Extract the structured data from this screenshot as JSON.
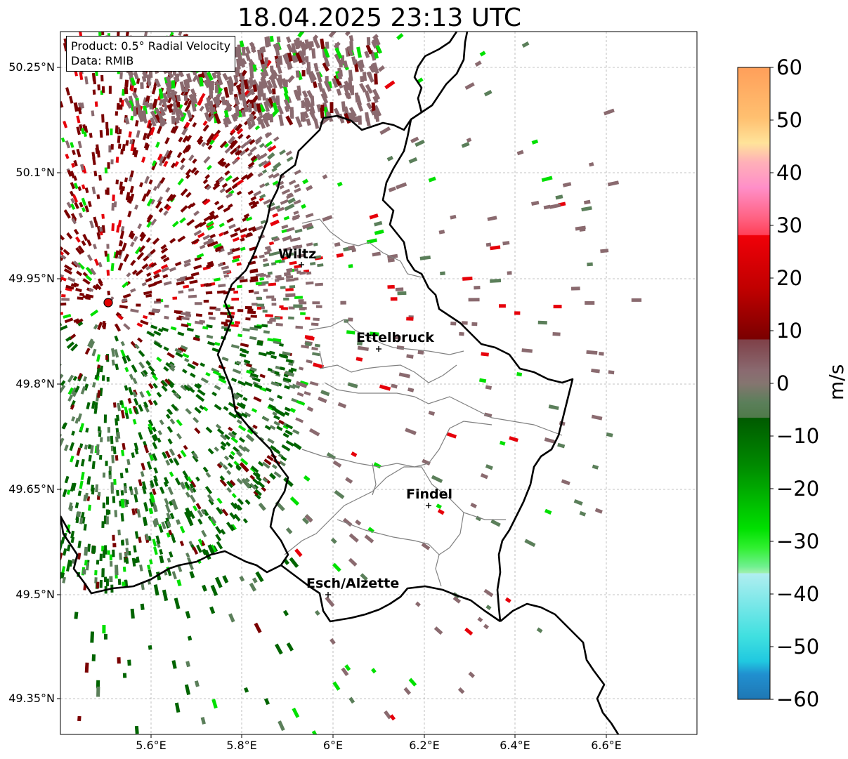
{
  "title": "18.04.2025 23:13 UTC",
  "info": {
    "product": "Product: 0.5° Radial Velocity",
    "source": "Data: RMIB"
  },
  "axes": {
    "lat_labels": [
      "50.25°N",
      "50.1°N",
      "49.95°N",
      "49.8°N",
      "49.65°N",
      "49.5°N",
      "49.35°N"
    ],
    "lon_labels": [
      "5.6°E",
      "5.8°E",
      "6°E",
      "6.2°E",
      "6.4°E",
      "6.6°E"
    ],
    "grid": "dashed"
  },
  "cities": [
    {
      "name": "Wiltz"
    },
    {
      "name": "Ettelbruck"
    },
    {
      "name": "Findel"
    },
    {
      "name": "Esch/Alzette"
    }
  ],
  "colorbar": {
    "unit": "m/s",
    "ticks": [
      "60",
      "50",
      "40",
      "30",
      "20",
      "10",
      "0",
      "−10",
      "−20",
      "−30",
      "−40",
      "−50",
      "−60"
    ],
    "range": [
      -60,
      60
    ],
    "colors": {
      "fast_away": "#ff9f5a",
      "away": "#e6000a",
      "dark_away": "#7a0000",
      "near_zero_pos": "#8a6a6f",
      "near_zero_neg": "#5b7f5a",
      "toward": "#006400",
      "fast_toward": "#00e000",
      "very_fast_toward": "#2ee0e0",
      "extreme_toward": "#1f77b4"
    }
  },
  "radar_site": {
    "color": "#e00000"
  }
}
